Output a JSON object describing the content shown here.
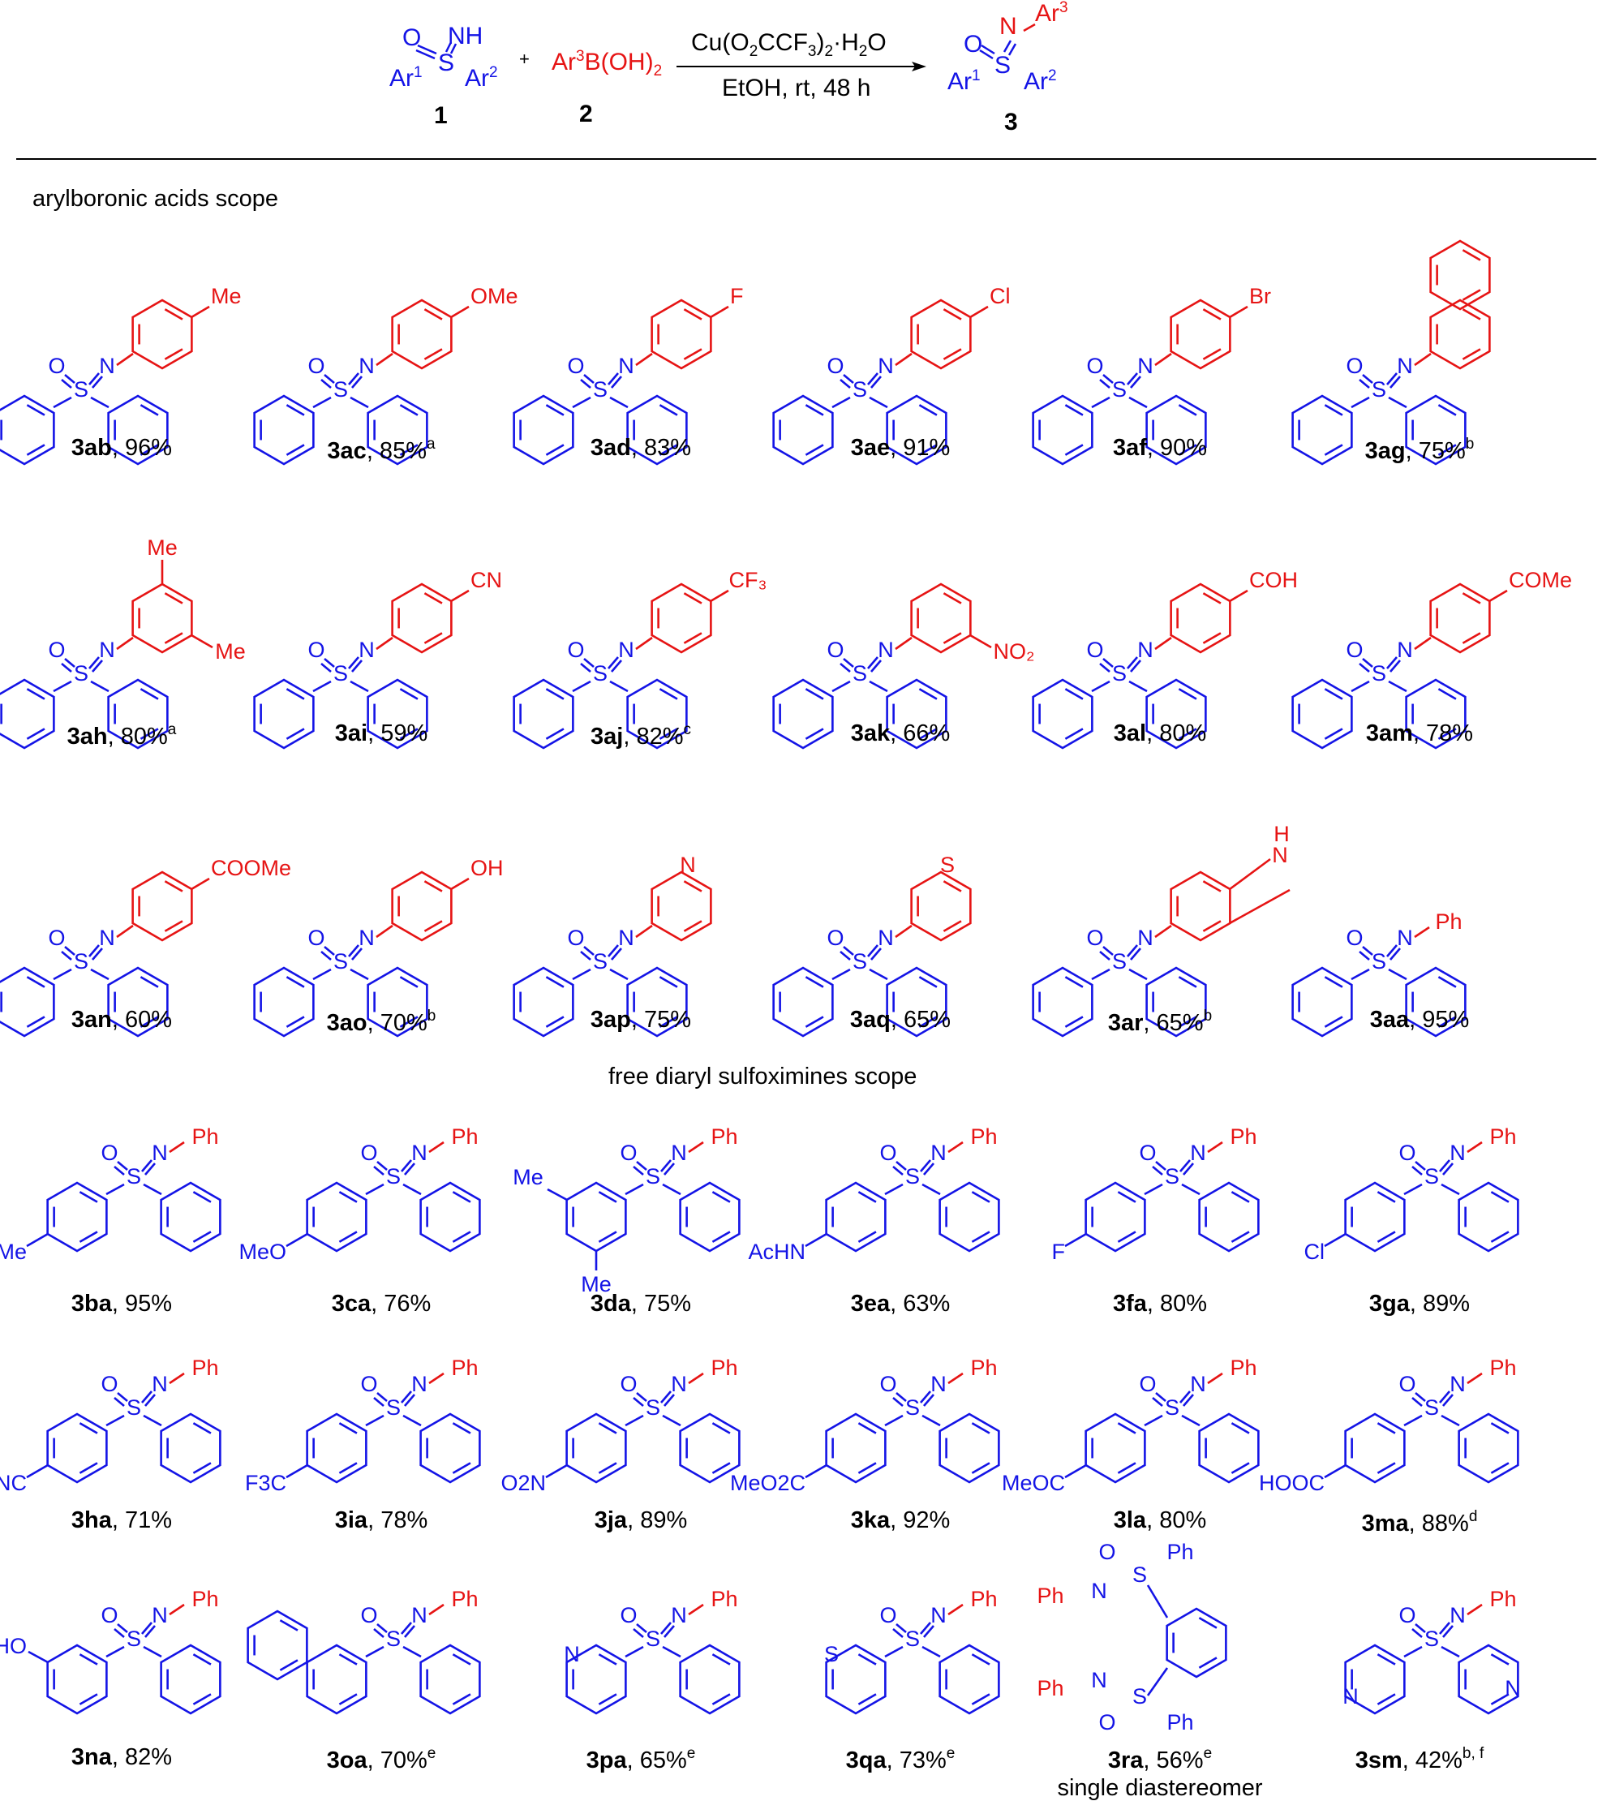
{
  "scheme": {
    "reactant1": {
      "O": "O",
      "NH": "NH",
      "S": "S",
      "Ar1": "Ar",
      "Ar1_sup": "1",
      "Ar2": "Ar",
      "Ar2_sup": "2",
      "number": "1"
    },
    "plus": "+",
    "reactant2": {
      "text_a": "Ar",
      "text_sup": "3",
      "text_b": "B(OH)",
      "text_sub": "2",
      "number": "2"
    },
    "conditions_top": {
      "a": "Cu(O",
      "sub1": "2",
      "b": "CCF",
      "sub2": "3",
      "c": ")",
      "sub3": "2",
      "d": "·H",
      "sub4": "2",
      "e": "O"
    },
    "conditions_bottom": "EtOH, rt, 48 h",
    "product": {
      "O": "O",
      "N": "N",
      "Ar3": "Ar",
      "Ar3_sup": "3",
      "S": "S",
      "Ar1": "Ar",
      "Ar1_sup": "1",
      "Ar2": "Ar",
      "Ar2_sup": "2",
      "number": "3"
    }
  },
  "section_arylboronic": "arylboronic acids scope",
  "section_sulfoximines": "free diaryl sulfoximines scope",
  "colors": {
    "core": "#1414e6",
    "variable": "#e61414",
    "text": "#000000"
  },
  "compounds": [
    {
      "id": "3ab",
      "yield": ", 96%",
      "note": "",
      "sub": "Me"
    },
    {
      "id": "3ac",
      "yield": ", 85%",
      "note": "a",
      "sub": "OMe"
    },
    {
      "id": "3ad",
      "yield": ", 83%",
      "note": "",
      "sub": "F"
    },
    {
      "id": "3ae",
      "yield": ", 91%",
      "note": "",
      "sub": "Cl"
    },
    {
      "id": "3af",
      "yield": ", 90%",
      "note": "",
      "sub": "Br"
    },
    {
      "id": "3ag",
      "yield": ", 75%",
      "note": "b",
      "sub": ""
    },
    {
      "id": "3ah",
      "yield": ", 80%",
      "note": "a",
      "sub": "Me",
      "sub2": "Me"
    },
    {
      "id": "3ai",
      "yield": ", 59%",
      "note": "",
      "sub": "CN"
    },
    {
      "id": "3aj",
      "yield": ", 82%",
      "note": "c",
      "sub": "CF3"
    },
    {
      "id": "3ak",
      "yield": ", 66%",
      "note": "",
      "sub": "NO2"
    },
    {
      "id": "3al",
      "yield": ", 80%",
      "note": "",
      "sub": "COH"
    },
    {
      "id": "3am",
      "yield": ", 78%",
      "note": "",
      "sub": "COMe"
    },
    {
      "id": "3an",
      "yield": ", 60%",
      "note": "",
      "sub": "COOMe"
    },
    {
      "id": "3ao",
      "yield": ", 70%",
      "note": "b",
      "sub": "OH"
    },
    {
      "id": "3ap",
      "yield": ", 75%",
      "note": "",
      "sub": "N"
    },
    {
      "id": "3aq",
      "yield": ", 65%",
      "note": "",
      "sub": "S"
    },
    {
      "id": "3ar",
      "yield": ", 65%",
      "note": "b",
      "sub": "H",
      "sub2": "N"
    },
    {
      "id": "3aa",
      "yield": ", 95%",
      "note": "",
      "sub": "Ph"
    },
    {
      "id": "3ba",
      "yield": ", 95%",
      "note": "",
      "sub": "Me"
    },
    {
      "id": "3ca",
      "yield": ", 76%",
      "note": "",
      "sub": "MeO"
    },
    {
      "id": "3da",
      "yield": ", 75%",
      "note": "",
      "sub": "Me",
      "sub2": "Me"
    },
    {
      "id": "3ea",
      "yield": ", 63%",
      "note": "",
      "sub": "AcHN"
    },
    {
      "id": "3fa",
      "yield": ", 80%",
      "note": "",
      "sub": "F"
    },
    {
      "id": "3ga",
      "yield": ", 89%",
      "note": "",
      "sub": "Cl"
    },
    {
      "id": "3ha",
      "yield": ", 71%",
      "note": "",
      "sub": "NC"
    },
    {
      "id": "3ia",
      "yield": ", 78%",
      "note": "",
      "sub": "F3C"
    },
    {
      "id": "3ja",
      "yield": ", 89%",
      "note": "",
      "sub": "O2N"
    },
    {
      "id": "3ka",
      "yield": ", 92%",
      "note": "",
      "sub": "MeO2C"
    },
    {
      "id": "3la",
      "yield": ", 80%",
      "note": "",
      "sub": "MeOC"
    },
    {
      "id": "3ma",
      "yield": ", 88%",
      "note": "d",
      "sub": "HOOC"
    },
    {
      "id": "3na",
      "yield": ", 82%",
      "note": "",
      "sub": "HO"
    },
    {
      "id": "3oa",
      "yield": ", 70%",
      "note": "e",
      "sub": ""
    },
    {
      "id": "3pa",
      "yield": ", 65%",
      "note": "e",
      "sub": "N"
    },
    {
      "id": "3qa",
      "yield": ", 73%",
      "note": "e",
      "sub": "S"
    },
    {
      "id": "3ra",
      "yield": ", 56%",
      "note": "e",
      "sub": "Ph",
      "extra": "single diastereomer"
    },
    {
      "id": "3sm",
      "yield": ", 42%",
      "note": "b, f",
      "sub": "N"
    }
  ],
  "atom_labels": {
    "S": "S",
    "O": "O",
    "N": "N",
    "Ph": "Ph"
  }
}
